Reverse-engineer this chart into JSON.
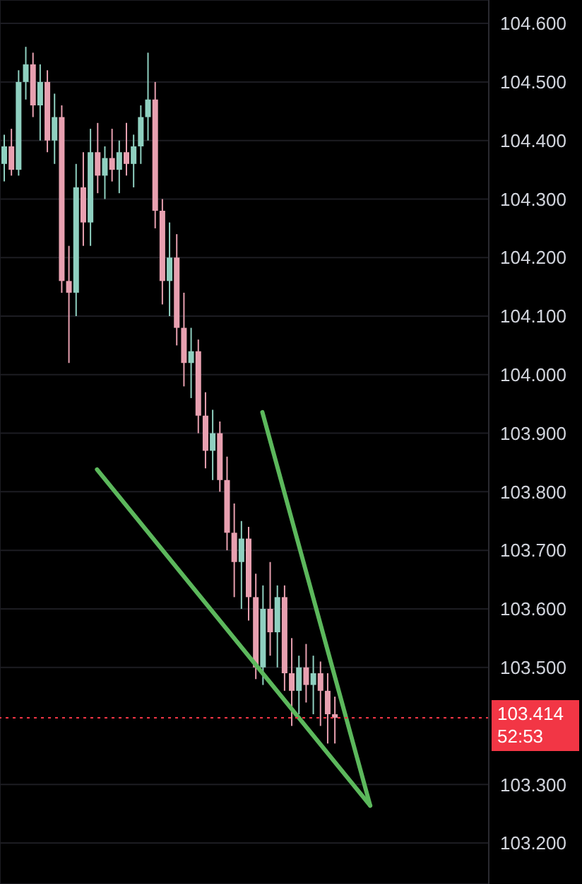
{
  "chart_data": {
    "type": "candlestick",
    "categories": [
      null,
      null,
      null,
      null,
      null,
      null,
      null,
      null,
      null,
      null,
      null,
      null,
      null,
      null,
      null,
      null,
      null,
      null,
      null,
      null,
      null,
      null,
      null,
      null,
      null,
      null,
      null,
      null,
      null,
      null,
      null,
      null,
      null,
      null,
      null,
      null,
      null,
      null,
      null,
      null,
      null,
      null,
      null,
      null,
      null,
      null,
      null,
      null,
      null,
      null,
      null,
      null,
      null,
      null,
      null,
      null,
      null,
      null,
      null,
      null,
      null,
      null,
      null,
      null,
      null,
      null,
      null,
      null
    ],
    "ohlc": [
      [
        104.36,
        104.41,
        104.33,
        104.39
      ],
      [
        104.39,
        104.42,
        104.34,
        104.35
      ],
      [
        104.35,
        104.52,
        104.34,
        104.5
      ],
      [
        104.5,
        104.56,
        104.47,
        104.53
      ],
      [
        104.53,
        104.55,
        104.44,
        104.46
      ],
      [
        104.46,
        104.53,
        104.4,
        104.5
      ],
      [
        104.5,
        104.52,
        104.38,
        104.4
      ],
      [
        104.4,
        104.48,
        104.36,
        104.44
      ],
      [
        104.44,
        104.46,
        104.14,
        104.16
      ],
      [
        104.16,
        104.22,
        104.02,
        104.14
      ],
      [
        104.14,
        104.36,
        104.1,
        104.32
      ],
      [
        104.32,
        104.38,
        104.22,
        104.26
      ],
      [
        104.26,
        104.42,
        104.22,
        104.38
      ],
      [
        104.38,
        104.43,
        104.31,
        104.34
      ],
      [
        104.34,
        104.39,
        104.3,
        104.37
      ],
      [
        104.37,
        104.42,
        104.33,
        104.35
      ],
      [
        104.35,
        104.4,
        104.31,
        104.38
      ],
      [
        104.38,
        104.43,
        104.34,
        104.36
      ],
      [
        104.36,
        104.41,
        104.32,
        104.39
      ],
      [
        104.39,
        104.46,
        104.36,
        104.44
      ],
      [
        104.44,
        104.55,
        104.4,
        104.47
      ],
      [
        104.47,
        104.5,
        104.25,
        104.28
      ],
      [
        104.28,
        104.3,
        104.12,
        104.16
      ],
      [
        104.16,
        104.26,
        104.1,
        104.2
      ],
      [
        104.2,
        104.24,
        104.05,
        104.08
      ],
      [
        104.08,
        104.14,
        103.98,
        104.02
      ],
      [
        104.02,
        104.08,
        103.96,
        104.04
      ],
      [
        104.04,
        104.06,
        103.9,
        103.93
      ],
      [
        103.93,
        103.97,
        103.84,
        103.87
      ],
      [
        103.87,
        103.94,
        103.82,
        103.9
      ],
      [
        103.9,
        103.92,
        103.8,
        103.82
      ],
      [
        103.82,
        103.86,
        103.7,
        103.73
      ],
      [
        103.73,
        103.78,
        103.62,
        103.68
      ],
      [
        103.68,
        103.75,
        103.6,
        103.72
      ],
      [
        103.72,
        103.74,
        103.58,
        103.62
      ],
      [
        103.62,
        103.66,
        103.48,
        103.5
      ],
      [
        103.5,
        103.64,
        103.47,
        103.6
      ],
      [
        103.6,
        103.68,
        103.52,
        103.56
      ],
      [
        103.56,
        103.64,
        103.5,
        103.62
      ],
      [
        103.62,
        103.64,
        103.46,
        103.49
      ],
      [
        103.49,
        103.55,
        103.4,
        103.46
      ],
      [
        103.46,
        103.52,
        103.42,
        103.5
      ],
      [
        103.5,
        103.54,
        103.44,
        103.47
      ],
      [
        103.47,
        103.52,
        103.42,
        103.49
      ],
      [
        103.49,
        103.51,
        103.4,
        103.46
      ],
      [
        103.46,
        103.49,
        103.37,
        103.42
      ],
      [
        103.42,
        103.45,
        103.37,
        103.414
      ],
      null,
      null,
      null,
      null,
      null,
      null,
      null,
      null,
      null,
      null,
      null,
      null,
      null,
      null,
      null,
      null,
      null,
      null,
      null,
      null,
      null
    ],
    "series": [
      {
        "type": "line",
        "color": "#5cb85c",
        "values": [
          null,
          null,
          null,
          null,
          null,
          null,
          null,
          null,
          null,
          null,
          null,
          null,
          null,
          103.838,
          null,
          null,
          null,
          null,
          null,
          null,
          null,
          null,
          null,
          null,
          null,
          null,
          null,
          null,
          null,
          null,
          null,
          null,
          null,
          null,
          null,
          null,
          null,
          null,
          null,
          null,
          null,
          null,
          null,
          null,
          null,
          null,
          null,
          null,
          null,
          null,
          null,
          103.264,
          null,
          null,
          null,
          null,
          null,
          null,
          null,
          null,
          null,
          null,
          null,
          null,
          null,
          null,
          null,
          null
        ]
      },
      {
        "type": "line",
        "color": "#5cb85c",
        "values": [
          null,
          null,
          null,
          null,
          null,
          null,
          null,
          null,
          null,
          null,
          null,
          null,
          null,
          null,
          null,
          null,
          null,
          null,
          null,
          null,
          null,
          null,
          null,
          null,
          null,
          null,
          null,
          null,
          null,
          null,
          null,
          null,
          null,
          null,
          null,
          null,
          103.936,
          null,
          null,
          null,
          null,
          null,
          null,
          null,
          null,
          null,
          null,
          null,
          null,
          null,
          null,
          103.264,
          null,
          null,
          null,
          null,
          null,
          null,
          null,
          null,
          null,
          null,
          null,
          null,
          null,
          null,
          null,
          null
        ]
      }
    ],
    "colors": [
      "#8fd0c0",
      "#e8a0b0",
      "#8fd0c0",
      "#8fd0c0",
      "#e8a0b0",
      "#8fd0c0",
      "#e8a0b0",
      "#8fd0c0",
      "#e8a0b0",
      "#e8a0b0",
      "#8fd0c0",
      "#e8a0b0",
      "#8fd0c0",
      "#e8a0b0",
      "#8fd0c0",
      "#e8a0b0",
      "#8fd0c0",
      "#e8a0b0",
      "#8fd0c0",
      "#8fd0c0",
      "#8fd0c0",
      "#e8a0b0",
      "#e8a0b0",
      "#8fd0c0",
      "#e8a0b0",
      "#e8a0b0",
      "#8fd0c0",
      "#e8a0b0",
      "#e8a0b0",
      "#8fd0c0",
      "#e8a0b0",
      "#e8a0b0",
      "#e8a0b0",
      "#8fd0c0",
      "#e8a0b0",
      "#e8a0b0",
      "#8fd0c0",
      "#e8a0b0",
      "#8fd0c0",
      "#e8a0b0",
      "#e8a0b0",
      "#8fd0c0",
      "#e8a0b0",
      "#8fd0c0",
      "#e8a0b0",
      "#e8a0b0",
      "#e8a0b0",
      null,
      null,
      null,
      null,
      null,
      null,
      null,
      null,
      null,
      null,
      null,
      null,
      null,
      null,
      null,
      null,
      null,
      null,
      null,
      null,
      null
    ],
    "ylim": [
      103.13,
      104.64
    ],
    "yticks": [
      {
        "value": 103.2,
        "label": "103.200"
      },
      {
        "value": 103.3,
        "label": "103.300"
      },
      {
        "value": 103.5,
        "label": "103.500"
      },
      {
        "value": 103.6,
        "label": "103.600"
      },
      {
        "value": 103.7,
        "label": "103.700"
      },
      {
        "value": 103.8,
        "label": "103.800"
      },
      {
        "value": 103.9,
        "label": "103.900"
      },
      {
        "value": 104.0,
        "label": "104.000"
      },
      {
        "value": 104.1,
        "label": "104.100"
      },
      {
        "value": 104.2,
        "label": "104.200"
      },
      {
        "value": 104.3,
        "label": "104.300"
      },
      {
        "value": 104.4,
        "label": "104.400"
      },
      {
        "value": 104.5,
        "label": "104.500"
      },
      {
        "value": 104.6,
        "label": "104.600"
      }
    ],
    "tick_labels": "y",
    "grid": true,
    "ref_lines": [
      {
        "axis": "y",
        "value": 103.414,
        "label": "103.414",
        "color": "#f23645",
        "line_style": "dotted"
      }
    ],
    "annotations": [
      "52:53"
    ]
  }
}
